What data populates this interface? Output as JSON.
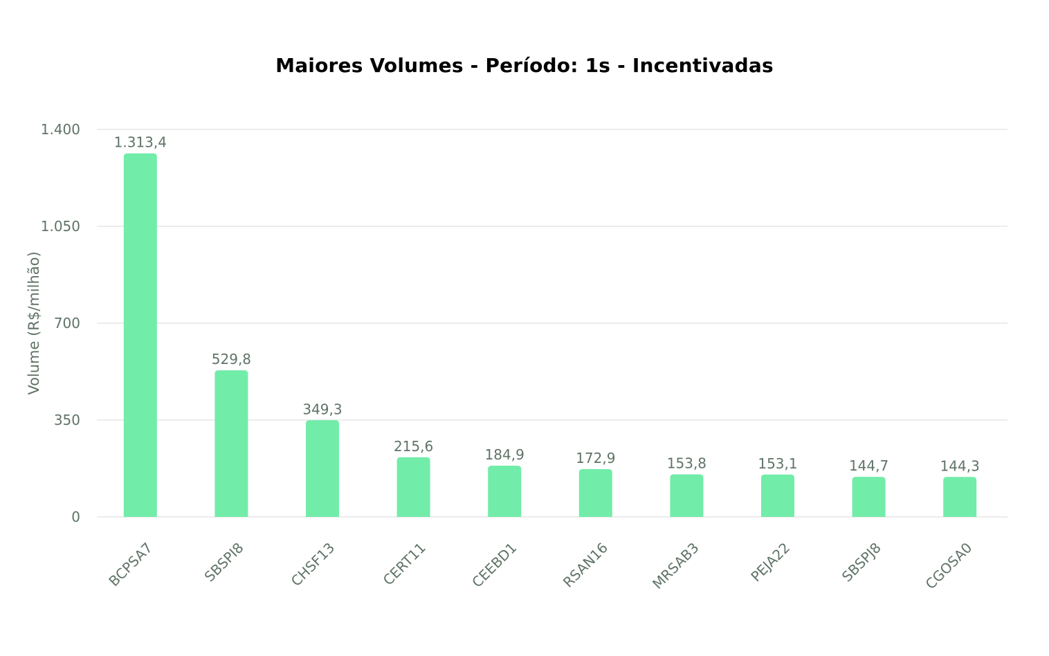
{
  "chart_data": {
    "type": "bar",
    "title": "Maiores Volumes - Período: 1s - Incentivadas",
    "xlabel": "",
    "ylabel": "Volume (R$/milhão)",
    "ylim": [
      0,
      1400
    ],
    "yticks": [
      0,
      350,
      700,
      1050,
      1400
    ],
    "ytick_labels": [
      "0",
      "350",
      "700",
      "1.050",
      "1.400"
    ],
    "categories": [
      "BCPSA7",
      "SBSPI8",
      "CHSF13",
      "CERT11",
      "CEEBD1",
      "RSAN16",
      "MRSAB3",
      "PEJA22",
      "SBSPJ8",
      "CGOSA0"
    ],
    "values": [
      1313.4,
      529.8,
      349.3,
      215.6,
      184.9,
      172.9,
      153.8,
      153.1,
      144.7,
      144.3
    ],
    "value_labels": [
      "1.313,4",
      "529,8",
      "349,3",
      "215,6",
      "184,9",
      "172,9",
      "153,8",
      "153,1",
      "144,7",
      "144,3"
    ],
    "grid": true,
    "legend": "none",
    "colors": {
      "bar": "#72eca9",
      "grid": "#e6e6e6",
      "text": "#5f7366",
      "title": "#000000"
    }
  }
}
